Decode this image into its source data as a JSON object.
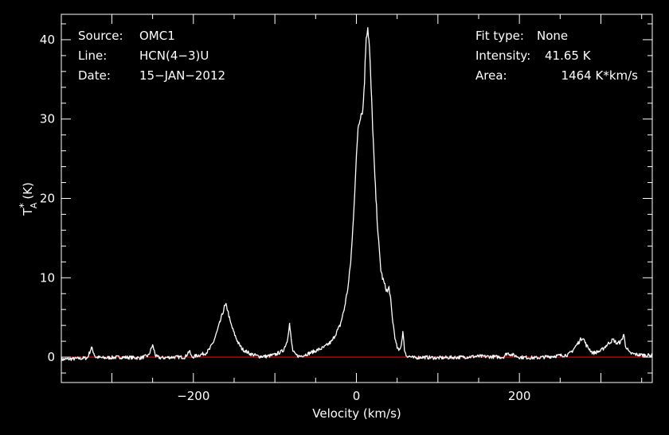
{
  "chart_data": {
    "type": "line",
    "xlabel": "Velocity (km/s)",
    "ylabel_main": "T",
    "ylabel_sup": "*",
    "ylabel_sub": "A",
    "ylabel_unit": "(K)",
    "xlim": [
      -362,
      363
    ],
    "ylim": [
      -3.2,
      43.2
    ],
    "xticks": [
      -200,
      0,
      200
    ],
    "yticks": [
      0,
      10,
      20,
      30,
      40
    ],
    "baseline": 0,
    "colors": {
      "spectrum": "#ffffff",
      "baseline": "#ff0000",
      "axes": "#ffffff",
      "background": "#000000"
    },
    "series": [
      {
        "x": [
          -362,
          -345,
          -330,
          -325,
          -320,
          -310,
          -290,
          -265,
          -255,
          -250,
          -246,
          -240,
          -225,
          -210,
          -205,
          -202,
          -195,
          -185,
          -180,
          -175,
          -170,
          -165,
          -162,
          -160,
          -158,
          -155,
          -150,
          -145,
          -140,
          -130,
          -120,
          -110,
          -100,
          -90,
          -85,
          -82,
          -80,
          -78,
          -75,
          -70,
          -60,
          -50,
          -40,
          -30,
          -20,
          -15,
          -10,
          -7,
          -5,
          -3,
          0,
          2,
          5,
          8,
          10,
          12,
          14,
          16,
          18,
          20,
          22,
          24,
          26,
          28,
          30,
          32,
          35,
          38,
          40,
          42,
          44,
          46,
          48,
          50,
          52,
          55,
          57,
          59,
          61,
          65,
          70,
          80,
          100,
          130,
          150,
          180,
          185,
          200,
          220,
          240,
          260,
          265,
          270,
          275,
          278,
          282,
          290,
          300,
          310,
          315,
          320,
          325,
          328,
          330,
          335,
          345,
          363
        ],
        "y": [
          -0.3,
          -0.2,
          -0.1,
          1.2,
          0.0,
          -0.1,
          0.0,
          -0.1,
          0.2,
          1.5,
          0.1,
          -0.1,
          0.0,
          0.0,
          0.8,
          0.0,
          0.2,
          0.5,
          1.0,
          2.0,
          3.5,
          5.2,
          6.3,
          6.5,
          6.0,
          4.5,
          3.0,
          1.8,
          1.0,
          0.4,
          0.1,
          0.1,
          0.3,
          0.8,
          2.0,
          4.2,
          2.2,
          0.8,
          0.3,
          0.1,
          0.4,
          0.8,
          1.2,
          2.0,
          4.0,
          6.0,
          9.0,
          12.0,
          15.0,
          19.0,
          25.0,
          29.0,
          30.5,
          31.2,
          35.0,
          40.5,
          41.6,
          39.0,
          34.0,
          29.0,
          24.0,
          20.0,
          16.5,
          13.5,
          11.0,
          10.0,
          9.0,
          8.2,
          8.8,
          7.2,
          5.0,
          3.5,
          2.0,
          1.2,
          0.8,
          1.5,
          3.2,
          1.0,
          0.2,
          0.1,
          -0.1,
          0.0,
          -0.1,
          0.0,
          0.1,
          0.0,
          0.5,
          0.0,
          -0.1,
          0.1,
          0.3,
          0.8,
          1.5,
          2.2,
          2.5,
          1.5,
          0.5,
          0.8,
          1.8,
          2.2,
          1.7,
          2.0,
          2.9,
          1.5,
          0.5,
          0.3,
          0.2
        ]
      }
    ],
    "annotations": {
      "left": [
        {
          "key": "Source:",
          "value": "OMC1"
        },
        {
          "key": "Line:",
          "value": "HCN(4−3)U"
        },
        {
          "key": "Date:",
          "value": "15−JAN−2012"
        }
      ],
      "right": [
        {
          "key": "Fit type:",
          "value": "None"
        },
        {
          "key": "Intensity:",
          "value": "41.65 K"
        },
        {
          "key": "Area:",
          "value": "1464 K*km/s"
        }
      ]
    }
  }
}
